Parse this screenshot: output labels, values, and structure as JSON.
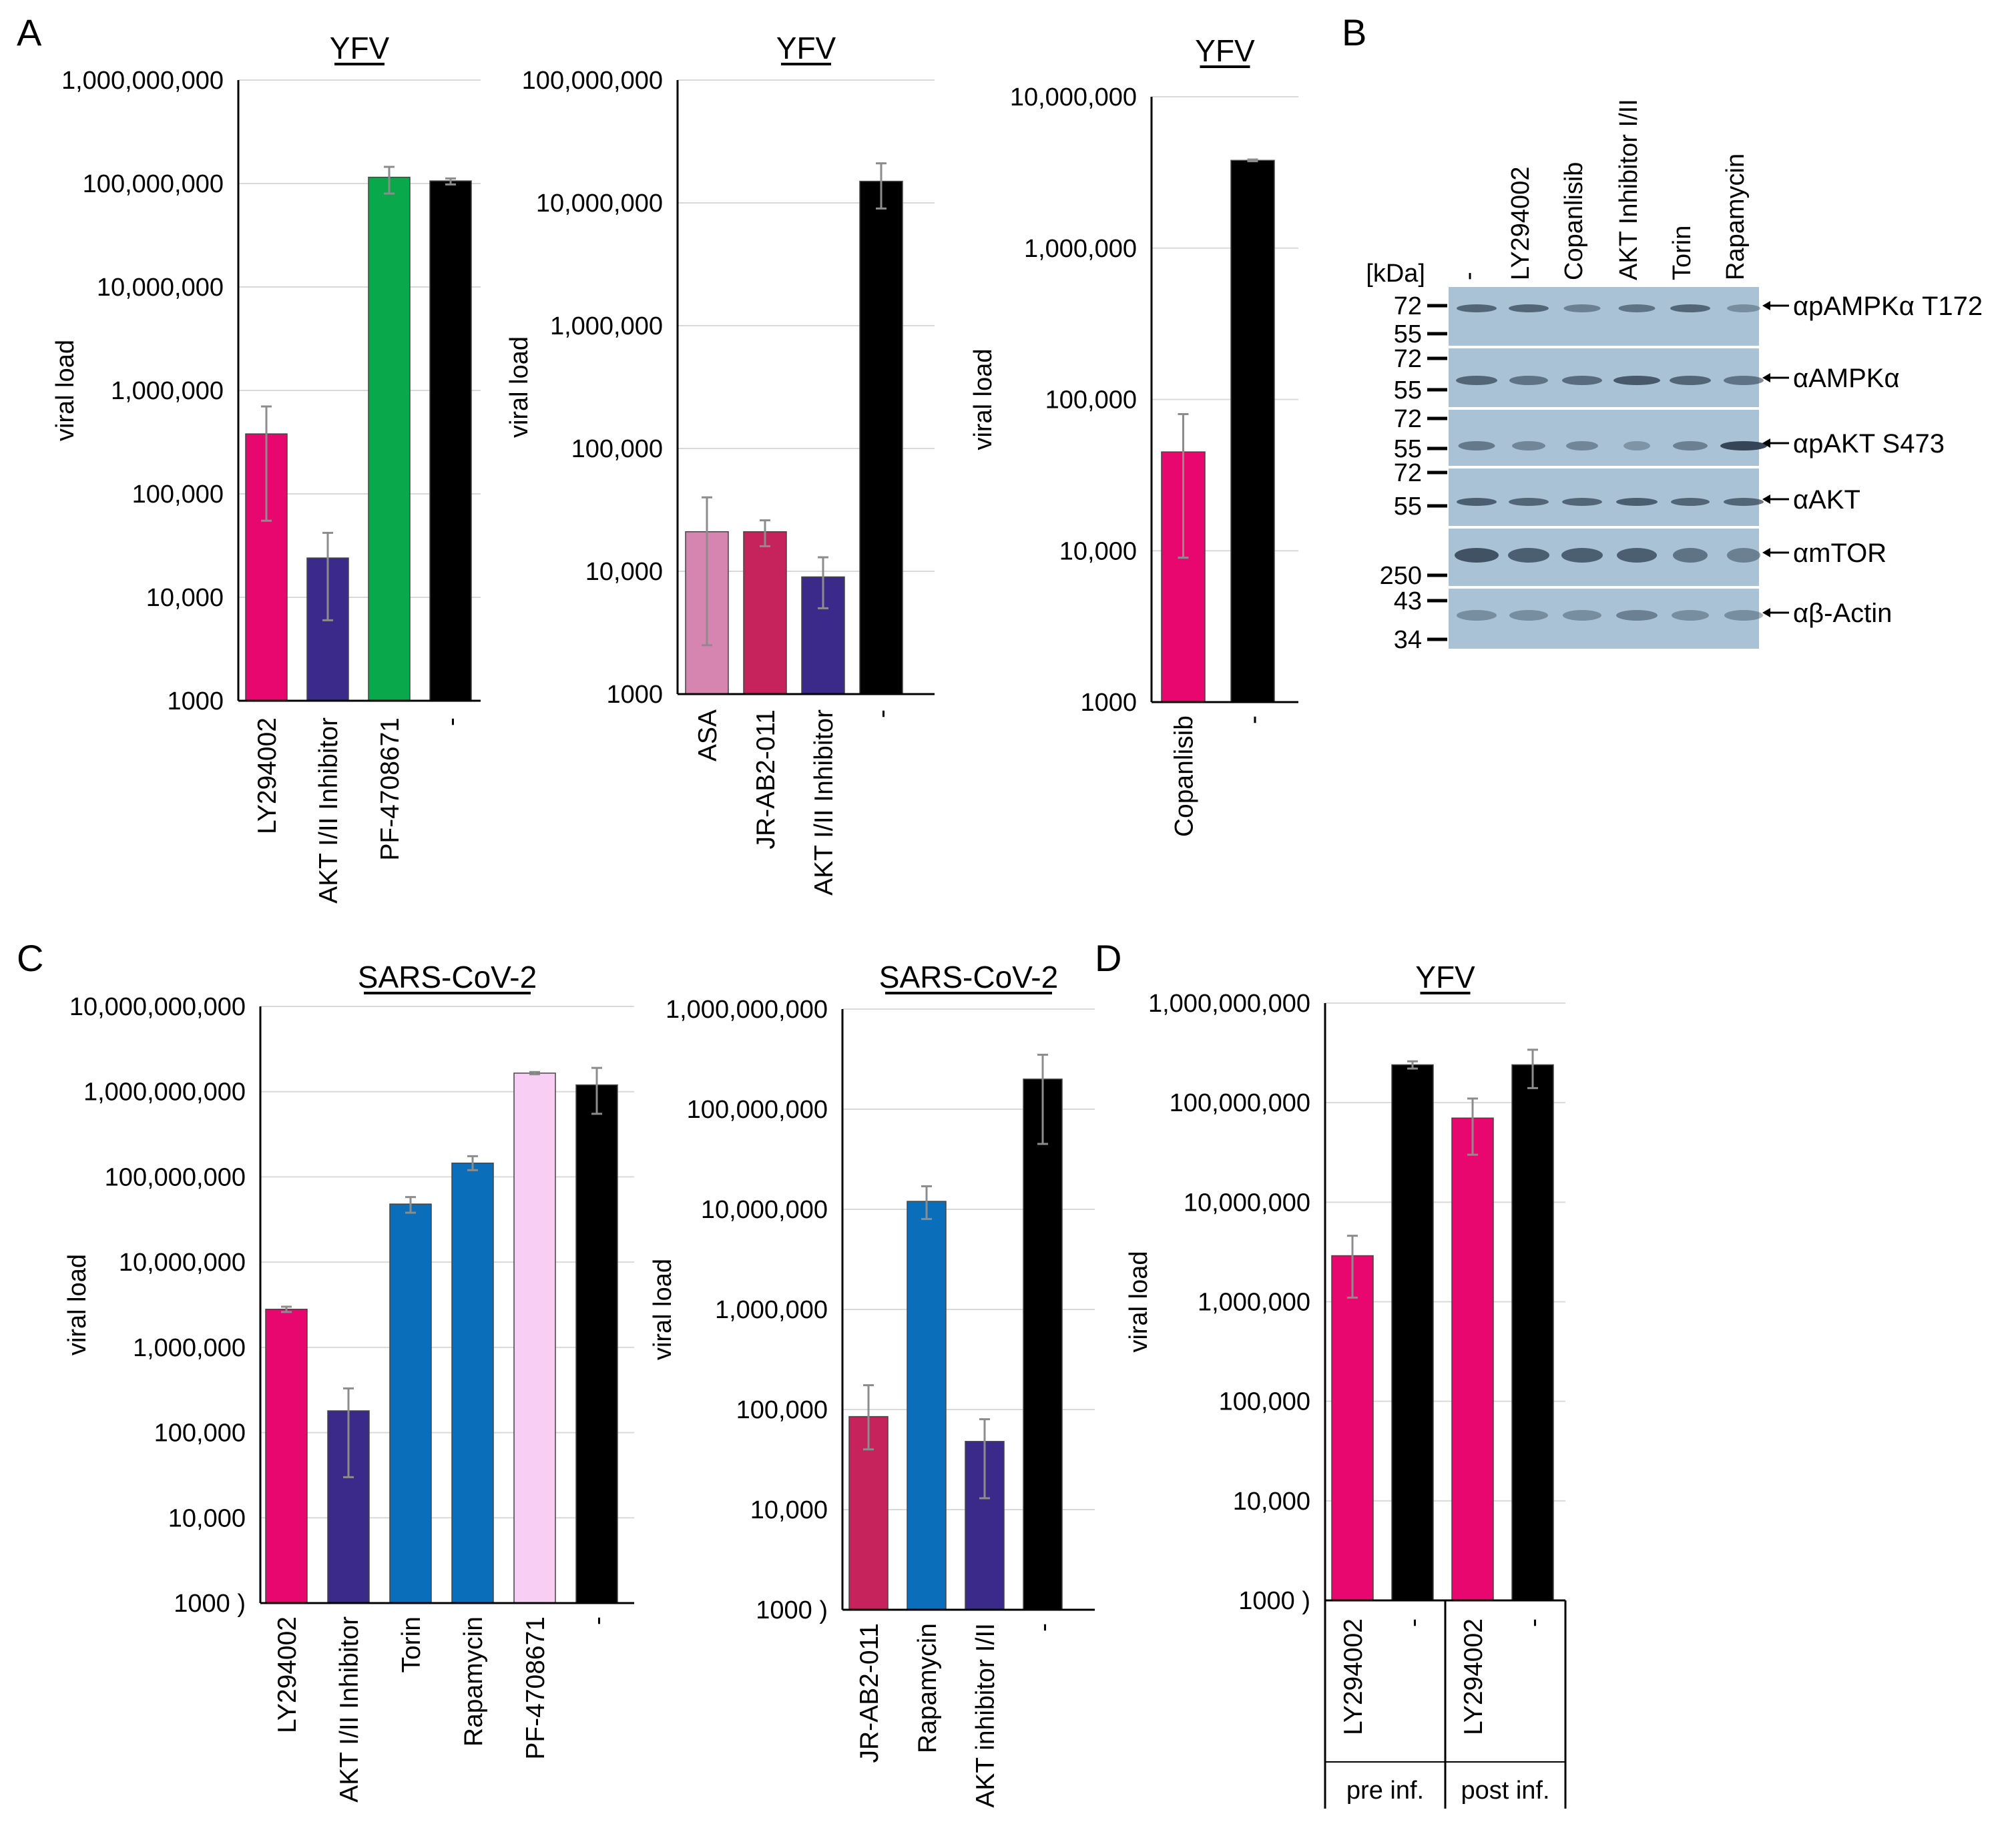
{
  "panel_labels": {
    "A": "A",
    "B": "B",
    "C": "C",
    "D": "D"
  },
  "viral_load_label": "viral load",
  "colors": {
    "magenta": "#E8066F",
    "purple": "#3B2A8A",
    "green": "#09A84A",
    "black": "#000000",
    "pink": "#D684B0",
    "crimson": "#C6225C",
    "blue": "#0A6EBA",
    "lightpink": "#F8CEF4",
    "grid": "#D9D9D9",
    "errbar": "#8C8C8C",
    "blot_bg": "#A9C2D6",
    "blot_band": "#2E3E50"
  },
  "chart_data": [
    {
      "id": "A1",
      "type": "bar",
      "title": "YFV",
      "ylabel": "viral load",
      "scale": "log",
      "ylim": [
        1000,
        1000000000
      ],
      "ticks": [
        "1000",
        "10,000",
        "100,000",
        "1,000,000",
        "10,000,000",
        "100,000,000",
        "1,000,000,000"
      ],
      "categories": [
        "LY294002",
        "AKT I/II Inhibitor",
        "PF-4708671",
        "-"
      ],
      "values": [
        380000,
        24000,
        115000000,
        106000000
      ],
      "err_low": [
        55000,
        6000,
        80000000,
        98000000
      ],
      "err_high": [
        700000,
        42000,
        145000000,
        112000000
      ],
      "colors": [
        "magenta",
        "purple",
        "green",
        "black"
      ]
    },
    {
      "id": "A2",
      "type": "bar",
      "title": "YFV",
      "ylabel": "viral load",
      "scale": "log",
      "ylim": [
        1000,
        100000000
      ],
      "ticks": [
        "1000",
        "10,000",
        "100,000",
        "1,000,000",
        "10,000,000",
        "100,000,000"
      ],
      "categories": [
        "ASA",
        "JR-AB2-011",
        "AKT I/II Inhibitor",
        "-"
      ],
      "values": [
        21000,
        21000,
        9000,
        15000000
      ],
      "err_low": [
        2500,
        16000,
        5000,
        9000000
      ],
      "err_high": [
        40000,
        26000,
        13000,
        21000000
      ],
      "colors": [
        "pink",
        "crimson",
        "purple",
        "black"
      ]
    },
    {
      "id": "A3",
      "type": "bar",
      "title": "YFV",
      "ylabel": "viral load",
      "scale": "log",
      "ylim": [
        1000,
        10000000
      ],
      "ticks": [
        "1000",
        "10,000",
        "100,000",
        "1,000,000",
        "10,000,000"
      ],
      "categories": [
        "Copanlisib",
        "-"
      ],
      "values": [
        45000,
        3800000
      ],
      "err_low": [
        9000,
        3750000
      ],
      "err_high": [
        80000,
        3850000
      ],
      "colors": [
        "magenta",
        "black"
      ]
    },
    {
      "id": "C1",
      "type": "bar",
      "title": "SARS-CoV-2",
      "ylabel": "viral load",
      "scale": "log",
      "ylim": [
        1000,
        10000000000
      ],
      "ticks": [
        "1000 )",
        "10,000",
        "100,000",
        "1,000,000",
        "10,000,000",
        "100,000,000",
        "1,000,000,000",
        "10,000,000,000"
      ],
      "categories": [
        "LY294002",
        "AKT I/II Inhibitor",
        "Torin",
        "Rapamycin",
        "PF-4708671",
        "-"
      ],
      "values": [
        2800000,
        180000,
        48000000,
        145000000,
        1650000000,
        1200000000
      ],
      "err_low": [
        2600000,
        30000,
        38000000,
        120000000,
        1600000000,
        550000000
      ],
      "err_high": [
        3000000,
        330000,
        58000000,
        175000000,
        1700000000,
        1900000000
      ],
      "colors": [
        "magenta",
        "purple",
        "blue",
        "blue",
        "lightpink",
        "black"
      ]
    },
    {
      "id": "C2",
      "type": "bar",
      "title": "SARS-CoV-2",
      "ylabel": "viral load",
      "scale": "log",
      "ylim": [
        1000,
        1000000000
      ],
      "ticks": [
        "1000 )",
        "10,000",
        "100,000",
        "1,000,000",
        "10,000,000",
        "100,000,000",
        "1,000,000,000"
      ],
      "categories": [
        "JR-AB2-011",
        "Rapamycin",
        "AKT inhibitor I/II",
        "-"
      ],
      "values": [
        85000,
        12000000,
        48000,
        200000000
      ],
      "err_low": [
        40000,
        8000000,
        13000,
        45000000
      ],
      "err_high": [
        175000,
        17000000,
        80000,
        350000000
      ],
      "colors": [
        "crimson",
        "blue",
        "purple",
        "black"
      ]
    },
    {
      "id": "D",
      "type": "bar",
      "title": "YFV",
      "ylabel": "viral load",
      "scale": "log",
      "ylim": [
        1000,
        1000000000
      ],
      "ticks": [
        "1000 )",
        "10,000",
        "100,000",
        "1,000,000",
        "10,000,000",
        "100,000,000",
        "1,000,000,000"
      ],
      "categories": [
        "LY294002",
        "-",
        "LY294002",
        "-"
      ],
      "groups": [
        {
          "label": "pre inf.",
          "span": [
            0,
            2
          ]
        },
        {
          "label": "post inf.",
          "span": [
            2,
            4
          ]
        }
      ],
      "values": [
        2900000,
        240000000,
        70000000,
        240000000
      ],
      "err_low": [
        1100000,
        220000000,
        30000000,
        140000000
      ],
      "err_high": [
        4600000,
        260000000,
        110000000,
        340000000
      ],
      "colors": [
        "magenta",
        "black",
        "magenta",
        "black"
      ]
    }
  ],
  "blot": {
    "kda_header": "[kDa]",
    "lanes": [
      "-",
      "LY294002",
      "Copanlisib",
      "AKT Inhibitor I/II",
      "Torin",
      "Rapamycin"
    ],
    "rows": [
      {
        "antibody": "αpAMPKα T172",
        "markers": [
          "72",
          "55"
        ]
      },
      {
        "antibody": "αAMPKα",
        "markers": [
          "72",
          "55"
        ]
      },
      {
        "antibody": "αpAKT S473",
        "markers": [
          "72",
          "55"
        ]
      },
      {
        "antibody": "αAKT",
        "markers": [
          "72",
          "55"
        ]
      },
      {
        "antibody": "αmTOR",
        "markers": [
          "250"
        ]
      },
      {
        "antibody": "αβ-Actin",
        "markers": [
          "43",
          "34"
        ]
      }
    ]
  }
}
